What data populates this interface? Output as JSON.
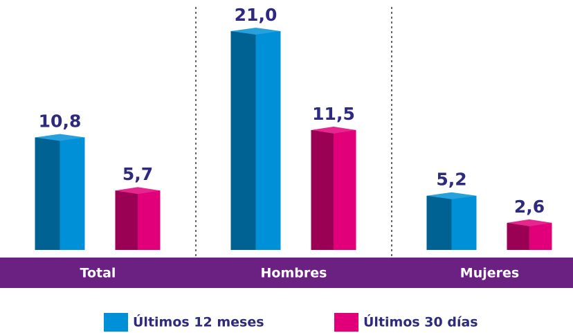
{
  "chart_data": {
    "type": "bar",
    "categories": [
      "Total",
      "Hombres",
      "Mujeres"
    ],
    "series": [
      {
        "name": "Últimos 12 meses",
        "color": "#0090d8",
        "values": [
          10.8,
          21.0,
          5.2
        ],
        "value_labels": [
          "10,8",
          "21,0",
          "5,2"
        ]
      },
      {
        "name": "Últimos 30 días",
        "color": "#e2007a",
        "values": [
          5.7,
          11.5,
          2.6
        ],
        "value_labels": [
          "5,7",
          "11,5",
          "2,6"
        ]
      }
    ]
  }
}
